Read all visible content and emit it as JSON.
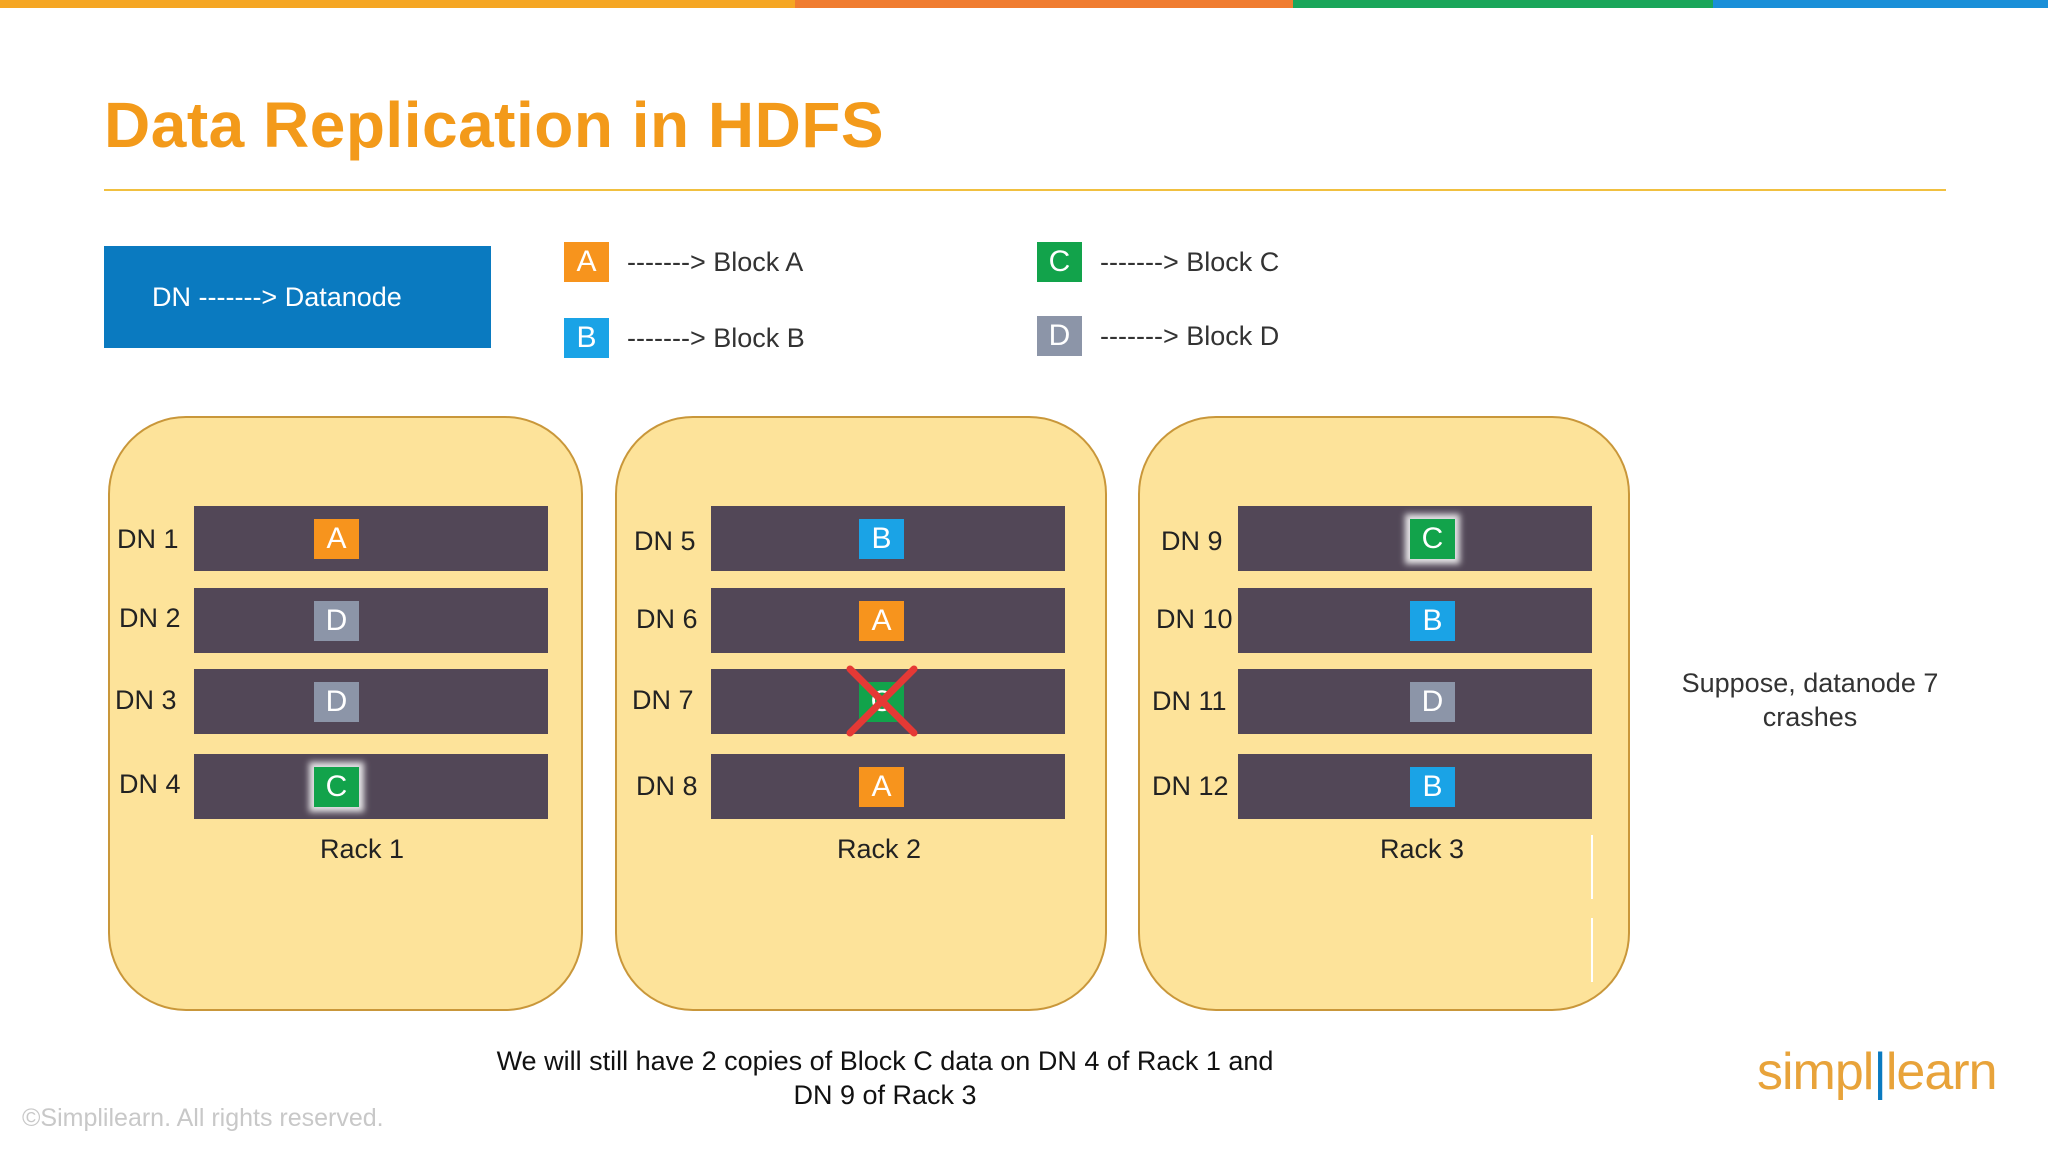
{
  "colors": {
    "top_bar": [
      "#f5a623",
      "#f07c30",
      "#1aa65a",
      "#1a8fd8"
    ],
    "title": "#f39a1a",
    "block_a": "#f7941d",
    "block_b": "#1aa3e6",
    "block_c": "#12a34b",
    "block_d": "#8c95a8",
    "rack_fill": "#fde39a",
    "node_bar": "#524757"
  },
  "title": "Data Replication in HDFS",
  "legend": {
    "dn": "DN -------> Datanode",
    "keys": [
      {
        "block": "A",
        "text": "-------> Block A"
      },
      {
        "block": "B",
        "text": "-------> Block B"
      },
      {
        "block": "C",
        "text": "-------> Block C"
      },
      {
        "block": "D",
        "text": "-------> Block D"
      }
    ]
  },
  "racks": [
    {
      "label": "Rack 1",
      "nodes": [
        {
          "label": "DN 1",
          "block": "A"
        },
        {
          "label": "DN 2",
          "block": "D"
        },
        {
          "label": "DN 3",
          "block": "D"
        },
        {
          "label": "DN 4",
          "block": "C",
          "highlighted": true
        }
      ]
    },
    {
      "label": "Rack 2",
      "nodes": [
        {
          "label": "DN 5",
          "block": "B"
        },
        {
          "label": "DN 6",
          "block": "A"
        },
        {
          "label": "DN 7",
          "block": "C",
          "crashed": true
        },
        {
          "label": "DN 8",
          "block": "A"
        }
      ]
    },
    {
      "label": "Rack 3",
      "nodes": [
        {
          "label": "DN 9",
          "block": "C",
          "highlighted": true
        },
        {
          "label": "DN 10",
          "block": "B"
        },
        {
          "label": "DN 11",
          "block": "D"
        },
        {
          "label": "DN 12",
          "block": "B"
        }
      ]
    }
  ],
  "side_note": "Suppose, datanode 7 crashes",
  "bottom_note": {
    "line1": "We will still have 2 copies of Block C data on DN 4 of Rack 1 and",
    "line2": "DN 9 of Rack 3"
  },
  "copyright": "©Simplilearn. All rights reserved.",
  "logo": {
    "part1": "simpl",
    "part2": "learn"
  }
}
